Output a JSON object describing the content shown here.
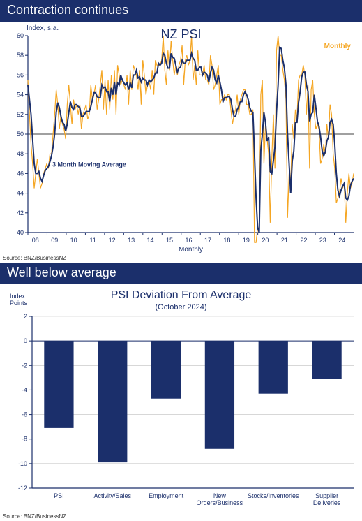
{
  "panel1": {
    "title": "Contraction continues",
    "chart": {
      "type": "line",
      "chart_title": "NZ PSI",
      "title_fontsize": 18,
      "title_color": "#1b2f6b",
      "y_label": "Index, s.a.",
      "y_label_fontsize": 10,
      "x_label": "Monthly",
      "x_label_fontsize": 10,
      "legend_monthly": "Monthly",
      "legend_ma": "3 Month Moving Average",
      "legend_monthly_color": "#f5a623",
      "legend_ma_color": "#1b2f6b",
      "background_color": "#ffffff",
      "grid_color": "#bfbfbf",
      "axis_color": "#1b2f6b",
      "ref_line_y": 50,
      "ref_line_color": "#000000",
      "ylim": [
        40,
        60
      ],
      "ytick_step": 2,
      "yticks": [
        40,
        42,
        44,
        46,
        48,
        50,
        52,
        54,
        56,
        58,
        60
      ],
      "xlim": [
        "2008",
        "2025"
      ],
      "xticks": [
        "08",
        "09",
        "10",
        "11",
        "12",
        "13",
        "14",
        "15",
        "16",
        "17",
        "18",
        "19",
        "20",
        "21",
        "22",
        "23",
        "24"
      ],
      "line_width_monthly": 1.2,
      "line_width_ma": 2,
      "monthly_series": [
        55.5,
        52,
        49,
        47,
        44.5,
        46,
        47.5,
        46,
        44.5,
        45,
        46,
        46.5,
        47,
        46.5,
        48,
        48,
        50,
        52,
        54.5,
        53,
        50.5,
        52,
        51,
        50.5,
        49.5,
        53,
        55,
        53,
        51,
        53.5,
        52.5,
        53,
        52,
        53,
        50.5,
        52,
        52.5,
        53,
        51.5,
        52,
        55,
        53.5,
        54,
        55,
        52.5,
        53.5,
        55,
        56.5,
        52.5,
        55.5,
        52,
        55.5,
        52.5,
        56,
        53.5,
        56.5,
        52,
        57,
        56,
        55,
        55.5,
        55,
        54.5,
        56,
        53,
        56.5,
        54.5,
        57,
        56.5,
        56,
        54.5,
        56.5,
        53,
        57.5,
        56,
        54,
        55,
        55.5,
        54.5,
        56.5,
        54,
        57.5,
        57,
        57,
        57,
        57.5,
        60,
        56.5,
        55,
        58.5,
        56.5,
        59.5,
        57.5,
        56,
        57,
        56,
        57,
        57.5,
        59,
        55,
        57.5,
        58,
        57,
        57.5,
        60,
        55.5,
        57,
        55,
        58.5,
        56,
        56,
        56,
        57,
        55.5,
        55.5,
        55,
        58,
        57,
        54.5,
        55,
        56,
        57,
        53,
        53.5,
        53.5,
        54,
        53.5,
        54,
        54,
        52.5,
        51,
        52,
        52.5,
        54,
        52,
        53.5,
        54,
        54.5,
        54.5,
        53,
        53,
        52,
        52,
        52.5,
        39,
        39,
        40.5,
        40.5,
        54,
        55.5,
        47,
        51,
        49.5,
        48,
        41,
        47.5,
        52,
        46.5,
        58.5,
        60,
        58,
        58,
        56.5,
        55.5,
        53.5,
        41.5,
        46,
        44.5,
        51,
        49.5,
        52.5,
        51.5,
        55.5,
        56,
        56,
        57,
        56,
        52,
        55,
        46.5,
        54.5,
        55.5,
        52,
        50.5,
        51,
        50.5,
        47,
        47.5,
        49,
        48,
        51,
        49.5,
        53,
        52,
        48,
        46.5,
        43,
        43.5,
        44,
        45.5,
        44.5,
        45,
        41,
        44,
        46,
        44.5,
        45,
        46
      ],
      "ma_series": [
        55,
        53.5,
        52,
        49.5,
        47,
        46,
        46,
        46.2,
        45.5,
        45.2,
        45.8,
        46.3,
        46.5,
        46.7,
        47.2,
        47.8,
        48.7,
        50,
        52.2,
        53.2,
        52.7,
        51.8,
        51.2,
        51,
        50.3,
        51,
        52.2,
        53.3,
        52.7,
        52.5,
        53,
        53,
        52.8,
        52.7,
        51.8,
        51.8,
        52,
        52.3,
        52.3,
        52.3,
        52.8,
        53.5,
        54.2,
        54.2,
        53.8,
        53.7,
        53.7,
        55,
        54.7,
        54.8,
        54.3,
        54.3,
        53.3,
        54.7,
        54,
        55.3,
        54,
        55.2,
        55,
        56,
        55.5,
        55.2,
        55,
        55.2,
        54.5,
        55.2,
        54.7,
        56,
        56,
        56.5,
        55.7,
        55.8,
        55.3,
        55.7,
        55.5,
        55.5,
        55,
        55.5,
        55.3,
        55.5,
        55.7,
        56.2,
        56.2,
        57.2,
        57,
        57.2,
        58.2,
        58,
        57.2,
        56.7,
        56.7,
        58.2,
        57.8,
        57.7,
        57,
        56.3,
        56.7,
        56.8,
        57.5,
        57.2,
        57.2,
        57.5,
        57.5,
        57.5,
        58.2,
        57.7,
        57.5,
        56.5,
        56.5,
        56.8,
        56.8,
        56,
        56.3,
        56.2,
        56,
        55.3,
        56.2,
        56.8,
        56.5,
        55.5,
        55.2,
        56,
        55.3,
        54.5,
        53.3,
        53.7,
        53.7,
        53.8,
        53.8,
        53.5,
        52.5,
        51.8,
        51.8,
        52.5,
        52.8,
        53.3,
        53.3,
        54,
        54.3,
        54,
        53.5,
        52.7,
        52.3,
        52.2,
        48,
        43.5,
        40.5,
        40,
        48.3,
        50,
        52.2,
        51.2,
        49.3,
        49.7,
        46.2,
        46,
        47.3,
        48.7,
        52.3,
        55,
        58.8,
        58.7,
        57.5,
        56.7,
        55,
        50,
        47,
        44,
        47.3,
        48.3,
        51.2,
        51.2,
        53.2,
        54.3,
        55.8,
        56.3,
        56.3,
        55,
        54.3,
        51.3,
        52,
        52.2,
        54,
        52.7,
        51.3,
        50.8,
        49.7,
        48.3,
        47.8,
        48.2,
        49.3,
        49.7,
        51.2,
        51.5,
        51,
        49,
        46,
        44.3,
        43.7,
        44.3,
        44.7,
        45,
        43.5,
        43.3,
        43.7,
        44.8,
        45.2,
        45.5
      ],
      "source": "Source: BNZ/BusinessNZ"
    }
  },
  "panel2": {
    "title": "Well below average",
    "chart": {
      "type": "bar",
      "chart_title": "PSI Deviation From Average",
      "subtitle": "(October 2024)",
      "title_fontsize": 16,
      "title_color": "#1b2f6b",
      "y_label": "Index\nPoints",
      "y_label_fontsize": 9,
      "background_color": "#ffffff",
      "grid_color": "#bfbfbf",
      "axis_color": "#1b2f6b",
      "bar_color": "#1b2f6b",
      "ylim": [
        -12,
        2
      ],
      "ytick_step": 2,
      "yticks": [
        -12,
        -10,
        -8,
        -6,
        -4,
        -2,
        0,
        2
      ],
      "categories": [
        "PSI",
        "Activity/Sales",
        "Employment",
        "New\nOrders/Business",
        "Stocks/Inventories",
        "Supplier\nDeliveries"
      ],
      "values": [
        -7.1,
        -9.9,
        -4.7,
        -8.8,
        -4.3,
        -3.1
      ],
      "bar_width": 0.55,
      "category_fontsize": 9,
      "source": "Source: BNZ/BusinessNZ"
    }
  }
}
